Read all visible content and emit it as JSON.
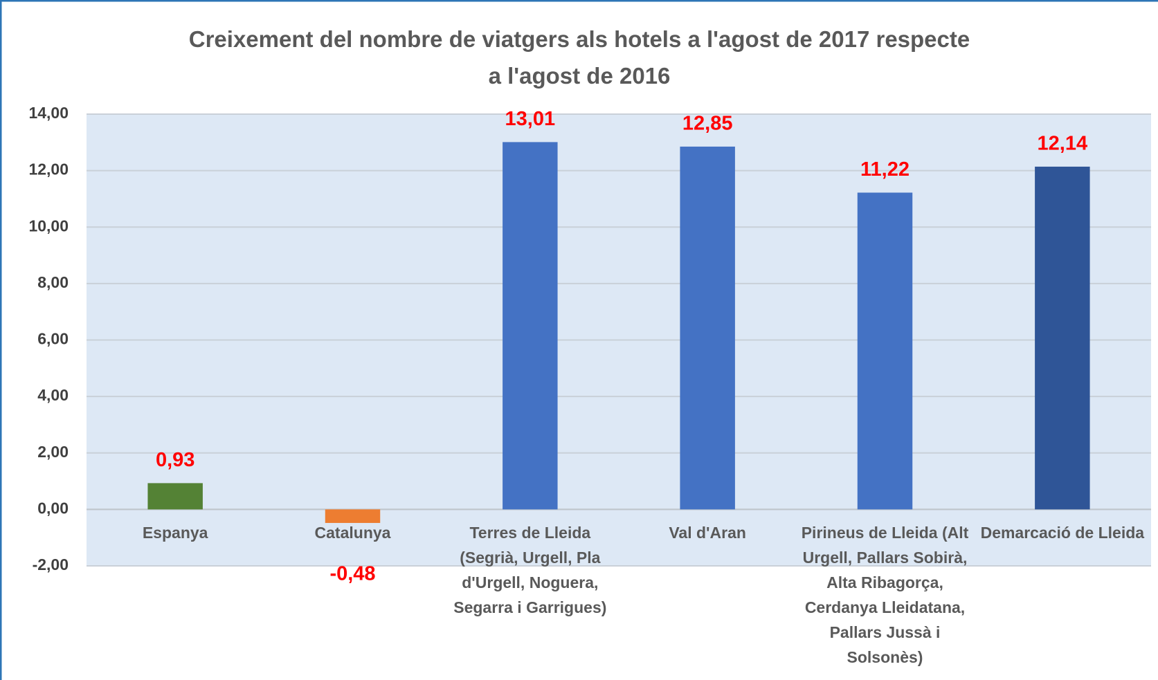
{
  "chart_data": {
    "type": "bar",
    "title": "Creixement del nombre de viatgers als hotels a l'agost de 2017 respecte a l'agost de 2016",
    "categories": [
      "Espanya",
      "Catalunya",
      "Terres de Lleida (Segrià, Urgell, Pla d'Urgell, Noguera, Segarra i Garrigues)",
      "Val d'Aran",
      "Pirineus de Lleida (Alt Urgell, Pallars Sobirà, Alta Ribagorça, Cerdanya Lleidatana, Pallars Jussà i Solsonès)",
      "Demarcació de Lleida"
    ],
    "values": [
      0.93,
      -0.48,
      13.01,
      12.85,
      11.22,
      12.14
    ],
    "value_labels": [
      "0,93",
      "-0,48",
      "13,01",
      "12,85",
      "11,22",
      "12,14"
    ],
    "colors": [
      "#548235",
      "#ed7d31",
      "#4472c4",
      "#4472c4",
      "#4472c4",
      "#2f5597"
    ],
    "ylim": [
      -2,
      14
    ],
    "yticks": [
      {
        "value": -2,
        "label": "-2,00"
      },
      {
        "value": 0,
        "label": "0,00"
      },
      {
        "value": 2,
        "label": "2,00"
      },
      {
        "value": 4,
        "label": "4,00"
      },
      {
        "value": 6,
        "label": "6,00"
      },
      {
        "value": 8,
        "label": "8,00"
      },
      {
        "value": 10,
        "label": "10,00"
      },
      {
        "value": 12,
        "label": "12,00"
      },
      {
        "value": 14,
        "label": "14,00"
      }
    ],
    "grid": true
  }
}
